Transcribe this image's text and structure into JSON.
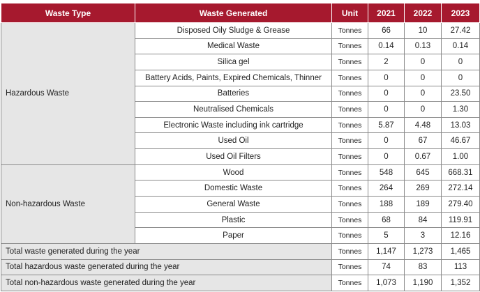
{
  "table": {
    "headers": {
      "type": "Waste Type",
      "generated": "Waste Generated",
      "unit": "Unit",
      "y2021": "2021",
      "y2022": "2022",
      "y2023": "2023"
    },
    "hazardous": {
      "label": "Hazardous Waste",
      "rows": [
        {
          "item": "Disposed Oily Sludge & Grease",
          "unit": "Tonnes",
          "v2021": "66",
          "v2022": "10",
          "v2023": "27.42"
        },
        {
          "item": "Medical Waste",
          "unit": "Tonnes",
          "v2021": "0.14",
          "v2022": "0.13",
          "v2023": "0.14"
        },
        {
          "item": "Silica gel",
          "unit": "Tonnes",
          "v2021": "2",
          "v2022": "0",
          "v2023": "0"
        },
        {
          "item": "Battery Acids, Paints, Expired Chemicals, Thinner",
          "unit": "Tonnes",
          "v2021": "0",
          "v2022": "0",
          "v2023": "0"
        },
        {
          "item": "Batteries",
          "unit": "Tonnes",
          "v2021": "0",
          "v2022": "0",
          "v2023": "23.50"
        },
        {
          "item": "Neutralised Chemicals",
          "unit": "Tonnes",
          "v2021": "0",
          "v2022": "0",
          "v2023": "1.30"
        },
        {
          "item": "Electronic Waste including ink cartridge",
          "unit": "Tonnes",
          "v2021": "5.87",
          "v2022": "4.48",
          "v2023": "13.03"
        },
        {
          "item": "Used Oil",
          "unit": "Tonnes",
          "v2021": "0",
          "v2022": "67",
          "v2023": "46.67"
        },
        {
          "item": "Used Oil Filters",
          "unit": "Tonnes",
          "v2021": "0",
          "v2022": "0.67",
          "v2023": "1.00"
        }
      ]
    },
    "non_hazardous": {
      "label": "Non-hazardous Waste",
      "rows": [
        {
          "item": "Wood",
          "unit": "Tonnes",
          "v2021": "548",
          "v2022": "645",
          "v2023": "668.31"
        },
        {
          "item": "Domestic Waste",
          "unit": "Tonnes",
          "v2021": "264",
          "v2022": "269",
          "v2023": "272.14"
        },
        {
          "item": "General Waste",
          "unit": "Tonnes",
          "v2021": "188",
          "v2022": "189",
          "v2023": "279.40"
        },
        {
          "item": "Plastic",
          "unit": "Tonnes",
          "v2021": "68",
          "v2022": "84",
          "v2023": "119.91"
        },
        {
          "item": "Paper",
          "unit": "Tonnes",
          "v2021": "5",
          "v2022": "3",
          "v2023": "12.16"
        }
      ]
    },
    "totals": [
      {
        "label": "Total waste generated during the year",
        "unit": "Tonnes",
        "v2021": "1,147",
        "v2022": "1,273",
        "v2023": "1,465"
      },
      {
        "label": "Total hazardous waste generated during the year",
        "unit": "Tonnes",
        "v2021": "74",
        "v2022": "83",
        "v2023": "113"
      },
      {
        "label": "Total non-hazardous waste generated during the year",
        "unit": "Tonnes",
        "v2021": "1,073",
        "v2022": "1,190",
        "v2023": "1,352"
      }
    ]
  },
  "colors": {
    "header_bg": "#a6192e",
    "header_text": "#ffffff",
    "label_bg": "#e6e6e6",
    "border": "#8a8a8a"
  }
}
